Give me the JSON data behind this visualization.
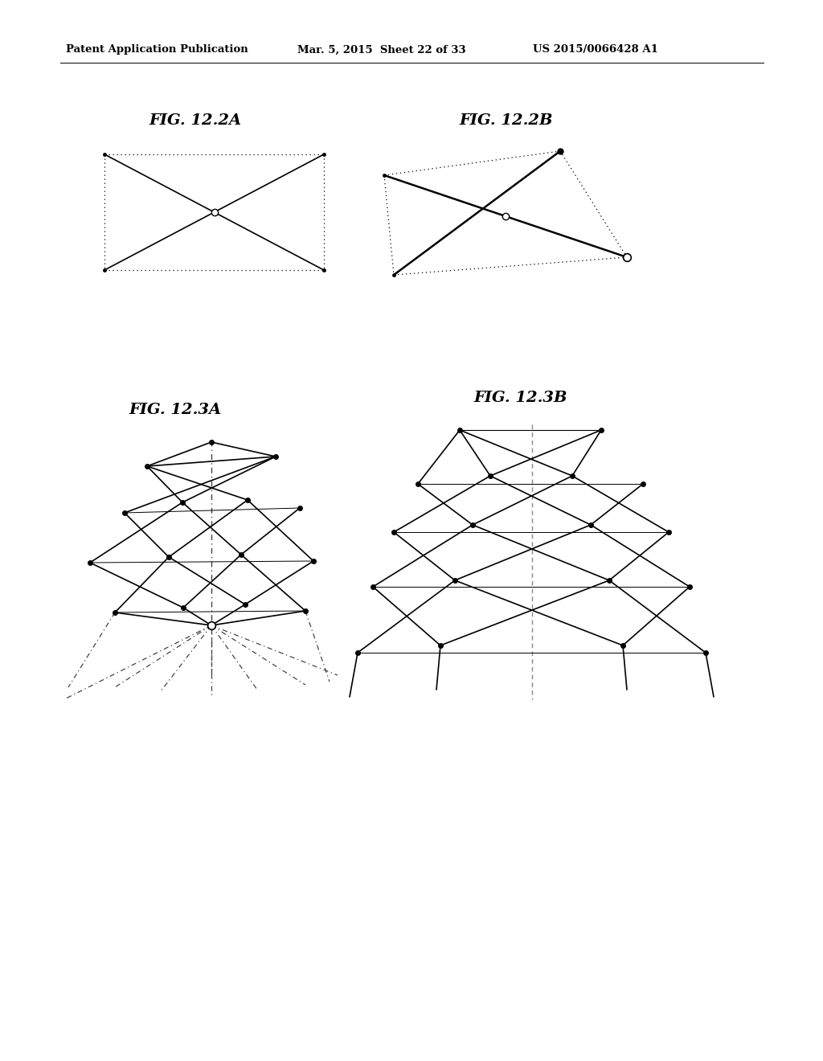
{
  "header_left": "Patent Application Publication",
  "header_mid": "Mar. 5, 2015  Sheet 22 of 33",
  "header_right": "US 2015/0066428 A1",
  "fig_122a_label": "FIG. 12.2A",
  "fig_122b_label": "FIG. 12.2B",
  "fig_123a_label": "FIG. 12.3A",
  "fig_123b_label": "FIG. 12.3B",
  "bg_color": "#ffffff",
  "lc": "#000000"
}
